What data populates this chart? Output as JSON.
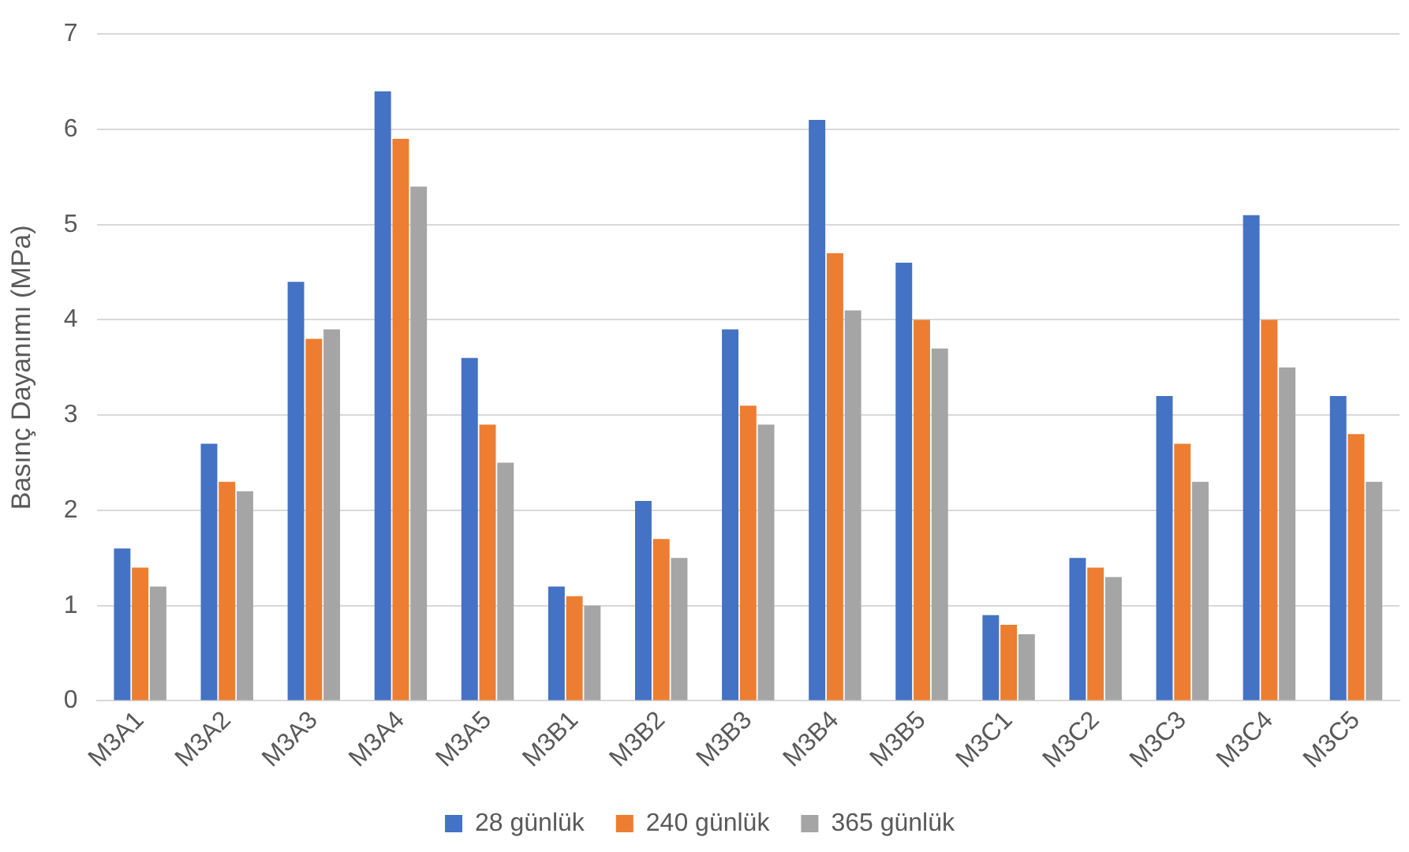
{
  "chart_data": {
    "type": "bar",
    "ylabel": "Basınç Dayanımı (MPa)",
    "categories": [
      "M3A1",
      "M3A2",
      "M3A3",
      "M3A4",
      "M3A5",
      "M3B1",
      "M3B2",
      "M3B3",
      "M3B4",
      "M3B5",
      "M3C1",
      "M3C2",
      "M3C3",
      "M3C4",
      "M3C5"
    ],
    "series": [
      {
        "name": "28 günlük",
        "color": "#4472c4",
        "values": [
          1.6,
          2.7,
          4.4,
          6.4,
          3.6,
          1.2,
          2.1,
          3.9,
          6.1,
          4.6,
          0.9,
          1.5,
          3.2,
          5.1,
          3.2
        ]
      },
      {
        "name": "240 günlük",
        "color": "#ed7d31",
        "values": [
          1.4,
          2.3,
          3.8,
          5.9,
          2.9,
          1.1,
          1.7,
          3.1,
          4.7,
          4.0,
          0.8,
          1.4,
          2.7,
          4.0,
          2.8
        ]
      },
      {
        "name": "365 günlük",
        "color": "#a5a5a5",
        "values": [
          1.2,
          2.2,
          3.9,
          5.4,
          2.5,
          1.0,
          1.5,
          2.9,
          4.1,
          3.7,
          0.7,
          1.3,
          2.3,
          3.5,
          2.3
        ]
      }
    ],
    "ylim": [
      0,
      7
    ],
    "yticks": [
      0,
      1,
      2,
      3,
      4,
      5,
      6,
      7
    ],
    "grid": "y",
    "legend": "bottom"
  }
}
